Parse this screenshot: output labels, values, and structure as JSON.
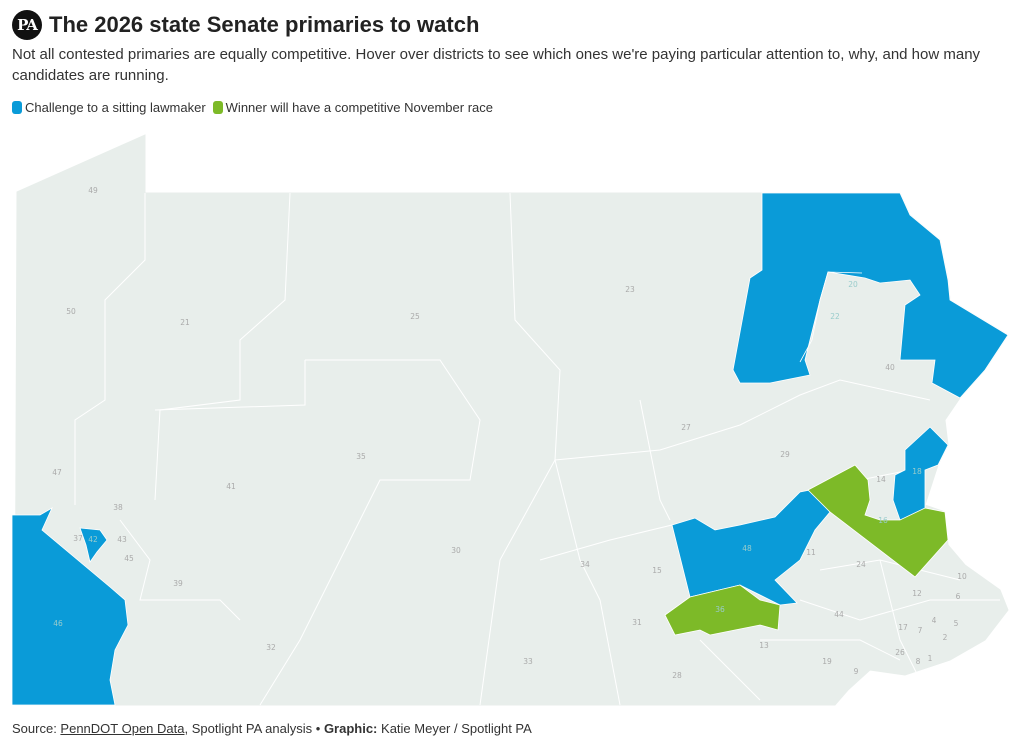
{
  "header": {
    "logo": "PA",
    "title": "The 2026 state Senate primaries to watch",
    "subtitle": "Not all contested primaries are equally competitive. Hover over districts to see which ones we're paying particular attention to, why, and how many candidates are running."
  },
  "legend": [
    {
      "label": "Challenge to a sitting lawmaker",
      "color": "#0a9bd8"
    },
    {
      "label": "Winner will have a competitive November race",
      "color": "#7dba28"
    }
  ],
  "colors": {
    "base": "#e8eeeb",
    "challenge": "#0a9bd8",
    "competitive": "#7dba28"
  },
  "districts": {
    "plain": [
      "49",
      "50",
      "21",
      "25",
      "23",
      "40",
      "27",
      "29",
      "14",
      "47",
      "38",
      "37",
      "43",
      "45",
      "41",
      "35",
      "30",
      "34",
      "15",
      "11",
      "24",
      "10",
      "6",
      "12",
      "44",
      "4",
      "5",
      "17",
      "7",
      "2",
      "39",
      "32",
      "31",
      "33",
      "13",
      "26",
      "19",
      "28",
      "9",
      "8",
      "1"
    ],
    "challenge": [
      "20",
      "22",
      "18",
      "48",
      "42",
      "46"
    ],
    "competitive": [
      "16",
      "36"
    ]
  },
  "footer": {
    "source_label": "Source: ",
    "source_link": "PennDOT Open Data",
    "source_rest": ", Spotlight PA analysis • ",
    "graphic_label": "Graphic:",
    "graphic_credit": " Katie Meyer / Spotlight PA"
  }
}
